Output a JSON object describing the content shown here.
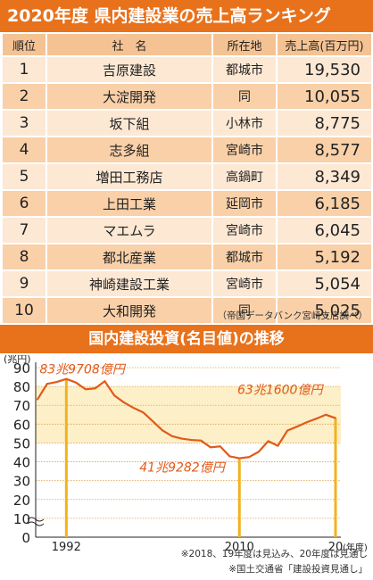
{
  "title": "2020年度 県内建設業の売上高ランキング",
  "ranking": {
    "headers": {
      "rank": "順位",
      "company": "社　名",
      "location": "所在地",
      "sales": "売上高(百万円)"
    },
    "rows": [
      {
        "rank": "1",
        "company": "吉原建設",
        "location": "都城市",
        "sales": "19,530"
      },
      {
        "rank": "2",
        "company": "大淀開発",
        "location": "同",
        "sales": "10,055"
      },
      {
        "rank": "3",
        "company": "坂下組",
        "location": "小林市",
        "sales": "8,775"
      },
      {
        "rank": "4",
        "company": "志多組",
        "location": "宮崎市",
        "sales": "8,577"
      },
      {
        "rank": "5",
        "company": "増田工務店",
        "location": "高鍋町",
        "sales": "8,349"
      },
      {
        "rank": "6",
        "company": "上田工業",
        "location": "延岡市",
        "sales": "6,185"
      },
      {
        "rank": "7",
        "company": "マエムラ",
        "location": "宮崎市",
        "sales": "6,045"
      },
      {
        "rank": "8",
        "company": "都北産業",
        "location": "都城市",
        "sales": "5,192"
      },
      {
        "rank": "9",
        "company": "神崎建設工業",
        "location": "宮崎市",
        "sales": "5,054"
      },
      {
        "rank": "10",
        "company": "大和開発",
        "location": "同",
        "sales": "5,025"
      }
    ],
    "source": "（帝国データバンク宮崎支店調べ）"
  },
  "investment": {
    "title": "国内建設投資(名目値)の推移",
    "notes": [
      "※2018、19年度は見込み、20年度は見通し",
      "※国土交通省「建設投資見通し」"
    ]
  },
  "chart_data": {
    "type": "line",
    "title": "国内建設投資(名目値)の推移",
    "ylabel": "(兆円)",
    "xlabel": "(年度)",
    "ylim": [
      0,
      90
    ],
    "yticks": [
      0,
      10,
      20,
      30,
      40,
      50,
      60,
      70,
      80,
      90
    ],
    "xtick_labels": [
      "1992",
      "2010",
      "20"
    ],
    "axis_break": true,
    "series": [
      {
        "color": "#e05a1a",
        "x": [
          1989,
          1990,
          1991,
          1992,
          1993,
          1994,
          1995,
          1996,
          1997,
          1998,
          1999,
          2000,
          2001,
          2002,
          2003,
          2004,
          2005,
          2006,
          2007,
          2008,
          2009,
          2010,
          2011,
          2012,
          2013,
          2014,
          2015,
          2016,
          2017,
          2018,
          2019,
          2020
        ],
        "values": [
          73.1,
          81.4,
          82.4,
          84.0,
          82.1,
          78.5,
          79.0,
          82.8,
          75.2,
          71.5,
          68.6,
          66.2,
          61.5,
          56.7,
          53.6,
          52.3,
          51.6,
          51.3,
          47.7,
          48.2,
          42.9,
          41.9,
          42.5,
          45.3,
          51.0,
          48.5,
          56.6,
          58.7,
          61.0,
          62.9,
          65.0,
          63.2
        ]
      }
    ],
    "annotations": [
      {
        "x": 1992,
        "label": "83兆9708億円"
      },
      {
        "x": 2010,
        "label": "41兆9282億円"
      },
      {
        "x": 2020,
        "label": "63兆1600億円"
      }
    ],
    "shaded_band": [
      50,
      80
    ]
  }
}
